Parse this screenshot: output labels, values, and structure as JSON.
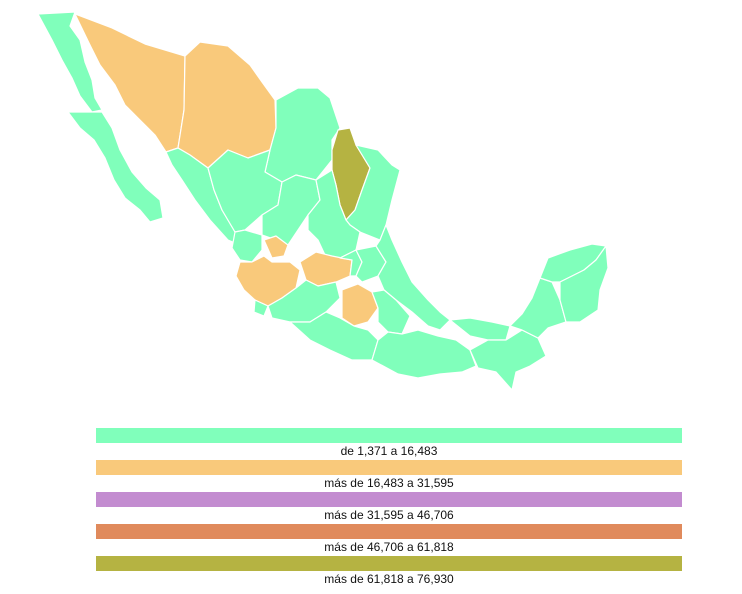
{
  "map": {
    "land_color": "#80ffbb",
    "border_color": "#ffffff",
    "highlighted_regions": [
      {
        "name_icon": "region-northwest",
        "class": 1
      },
      {
        "name_icon": "region-center-west",
        "class": 1
      },
      {
        "name_icon": "region-center",
        "class": 1
      },
      {
        "name_icon": "region-northeast",
        "class": 4
      }
    ]
  },
  "legend": {
    "items": [
      {
        "label": "de 1,371 a 16,483",
        "color": "#80ffbb"
      },
      {
        "label": "más de 16,483 a 31,595",
        "color": "#f9c97b"
      },
      {
        "label": "más de 31,595 a 46,706",
        "color": "#c38cd0"
      },
      {
        "label": "más de 46,706 a 61,818",
        "color": "#e08a5c"
      },
      {
        "label": "más de 61,818 a 76,930",
        "color": "#b5b342"
      }
    ]
  }
}
